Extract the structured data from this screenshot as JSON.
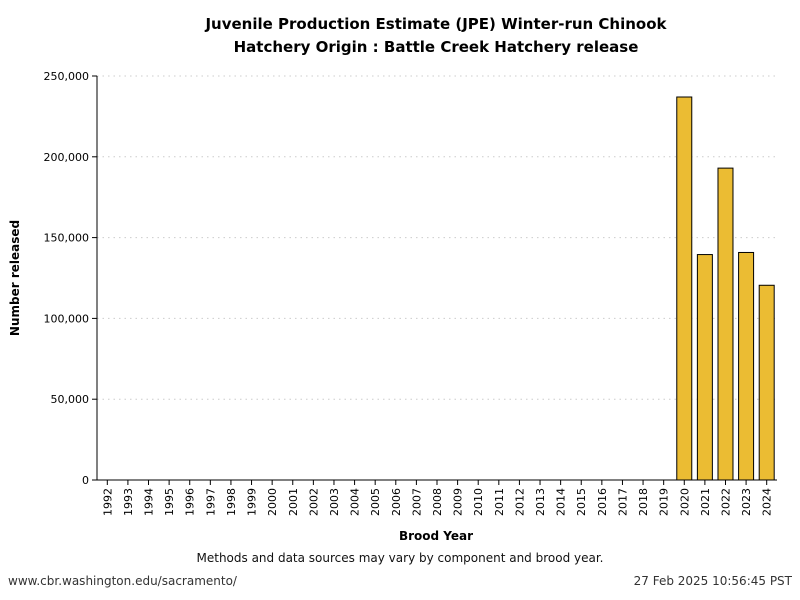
{
  "chart_data": {
    "type": "bar",
    "title": "Juvenile Production Estimate (JPE) Winter-run Chinook",
    "subtitle": "Hatchery Origin : Battle Creek Hatchery release",
    "xlabel": "Brood Year",
    "ylabel": "Number released",
    "ylim": [
      0,
      250000
    ],
    "yticks": [
      0,
      50000,
      100000,
      150000,
      200000,
      250000
    ],
    "ytick_labels": [
      "0",
      "50,000",
      "100,000",
      "150,000",
      "200,000",
      "250,000"
    ],
    "grid": "horizontal dotted",
    "bar_color": "#EBBC33",
    "categories": [
      "1992",
      "1993",
      "1994",
      "1995",
      "1996",
      "1997",
      "1998",
      "1999",
      "2000",
      "2001",
      "2002",
      "2003",
      "2004",
      "2005",
      "2006",
      "2007",
      "2008",
      "2009",
      "2010",
      "2011",
      "2012",
      "2013",
      "2014",
      "2015",
      "2016",
      "2017",
      "2018",
      "2019",
      "2020",
      "2021",
      "2022",
      "2023",
      "2024"
    ],
    "values": [
      null,
      null,
      null,
      null,
      null,
      null,
      null,
      null,
      null,
      null,
      null,
      null,
      null,
      null,
      null,
      null,
      null,
      null,
      null,
      null,
      null,
      null,
      null,
      null,
      null,
      null,
      null,
      null,
      237000,
      139500,
      193000,
      140800,
      120500
    ]
  },
  "note": "Methods and data sources may vary by component and brood year.",
  "footer": {
    "url": "www.cbr.washington.edu/sacramento/",
    "timestamp": "27 Feb 2025 10:56:45 PST"
  }
}
